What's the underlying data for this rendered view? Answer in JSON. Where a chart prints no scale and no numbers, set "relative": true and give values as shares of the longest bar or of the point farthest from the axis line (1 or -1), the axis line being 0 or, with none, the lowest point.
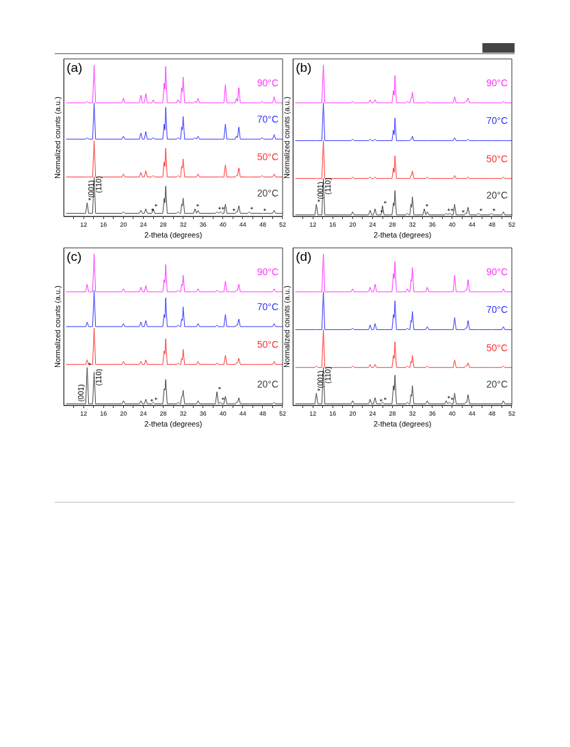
{
  "chart_data": [
    {
      "type": "line",
      "title": "(a)",
      "xlabel": "2-theta (degrees)",
      "ylabel": "Normalized counts (a.u.)",
      "relative": true,
      "grid": false,
      "legend": false,
      "marker": "none",
      "line_style": "solid",
      "xlim": [
        8,
        52
      ],
      "xticks": [
        {
          "value": 10,
          "label": null
        },
        12,
        {
          "value": 14,
          "label": null
        },
        16,
        {
          "value": 18,
          "label": null
        },
        20,
        {
          "value": 22,
          "label": null
        },
        24,
        {
          "value": 26,
          "label": null
        },
        28,
        {
          "value": 30,
          "label": null
        },
        32,
        {
          "value": 34,
          "label": null
        },
        36,
        {
          "value": 38,
          "label": null
        },
        40,
        {
          "value": 42,
          "label": null
        },
        44,
        {
          "value": 46,
          "label": null
        },
        48,
        {
          "value": 50,
          "label": null
        },
        52
      ],
      "x": [
        8.5,
        12.4,
        12.7,
        13.0,
        13.8,
        14.1,
        14.4,
        19.7,
        20.0,
        20.3,
        23.2,
        23.5,
        23.8,
        24.2,
        24.5,
        24.8,
        25.7,
        26.0,
        26.3,
        27.9,
        28.2,
        28.35,
        28.5,
        28.8,
        30.7,
        31.0,
        31.3,
        31.5,
        31.7,
        31.85,
        32.0,
        32.3,
        34.1,
        34.4,
        34.7,
        35.0,
        35.3,
        38.5,
        38.8,
        39.1,
        39.5,
        39.8,
        40.2,
        40.5,
        40.8,
        41.5,
        41.8,
        42.1,
        42.5,
        42.7,
        42.95,
        43.2,
        43.5,
        45.0,
        45.3,
        45.6,
        47.6,
        47.9,
        48.2,
        50.0,
        50.3,
        50.6,
        52
      ],
      "series": [
        {
          "name": "90°C",
          "color": "#ff33ff",
          "values": [
            0.75,
            0.75,
            0.76,
            0.75,
            0.75,
            1,
            0.75,
            0.75,
            0.78,
            0.75,
            0.75,
            0.8,
            0.75,
            0.75,
            0.81,
            0.75,
            0.75,
            0.77,
            0.75,
            0.75,
            0.88,
            0.84,
            0.99,
            0.75,
            0.75,
            0.77,
            0.75,
            0.75,
            0.85,
            0.82,
            0.92,
            0.75,
            0.75,
            0.76,
            0.75,
            0.78,
            0.75,
            0.75,
            0.75,
            0.75,
            0.75,
            0.75,
            0.75,
            0.87,
            0.75,
            0.75,
            0.75,
            0.75,
            0.75,
            0.78,
            0.76,
            0.85,
            0.75,
            0.75,
            0.75,
            0.75,
            0.75,
            0.76,
            0.75,
            0.75,
            0.79,
            0.75,
            0.75
          ]
        },
        {
          "name": "70°C",
          "color": "#3333ff",
          "values": [
            0.51,
            0.51,
            0.52,
            0.51,
            0.51,
            0.75,
            0.51,
            0.51,
            0.53,
            0.51,
            0.51,
            0.55,
            0.51,
            0.51,
            0.56,
            0.51,
            0.51,
            0.52,
            0.51,
            0.51,
            0.61,
            0.57,
            0.72,
            0.51,
            0.51,
            0.52,
            0.51,
            0.51,
            0.59,
            0.57,
            0.66,
            0.51,
            0.51,
            0.52,
            0.51,
            0.53,
            0.51,
            0.51,
            0.51,
            0.51,
            0.51,
            0.51,
            0.51,
            0.61,
            0.51,
            0.51,
            0.51,
            0.51,
            0.51,
            0.53,
            0.52,
            0.59,
            0.51,
            0.51,
            0.51,
            0.51,
            0.51,
            0.52,
            0.51,
            0.51,
            0.54,
            0.51,
            0.51
          ]
        },
        {
          "name": "50°C",
          "color": "#ff3333",
          "values": [
            0.26,
            0.26,
            0.26,
            0.26,
            0.26,
            0.5,
            0.26,
            0.26,
            0.28,
            0.26,
            0.26,
            0.29,
            0.26,
            0.26,
            0.3,
            0.26,
            0.26,
            0.27,
            0.26,
            0.26,
            0.36,
            0.33,
            0.45,
            0.26,
            0.26,
            0.27,
            0.26,
            0.26,
            0.33,
            0.32,
            0.38,
            0.26,
            0.26,
            0.26,
            0.26,
            0.28,
            0.26,
            0.26,
            0.26,
            0.26,
            0.26,
            0.26,
            0.26,
            0.34,
            0.26,
            0.26,
            0.26,
            0.26,
            0.26,
            0.27,
            0.27,
            0.32,
            0.26,
            0.26,
            0.26,
            0.26,
            0.26,
            0.27,
            0.26,
            0.26,
            0.28,
            0.26,
            0.26
          ]
        },
        {
          "name": "20°C",
          "color": "#404040",
          "values": [
            0.02,
            0.02,
            0.09,
            0.02,
            0.02,
            0.26,
            0.02,
            0.02,
            0.03,
            0.02,
            0.02,
            0.04,
            0.02,
            0.02,
            0.05,
            0.02,
            0.02,
            0.05,
            0.02,
            0.02,
            0.12,
            0.09,
            0.2,
            0.02,
            0.02,
            0.03,
            0.02,
            0.02,
            0.08,
            0.07,
            0.12,
            0.02,
            0.02,
            0.05,
            0.02,
            0.04,
            0.02,
            0.02,
            0.03,
            0.02,
            0.03,
            0.02,
            0.02,
            0.08,
            0.02,
            0.02,
            0.02,
            0.02,
            0.02,
            0.03,
            0.03,
            0.07,
            0.02,
            0.02,
            0.03,
            0.02,
            0.02,
            0.02,
            0.02,
            0.02,
            0.04,
            0.02,
            0.02
          ]
        }
      ],
      "annotations": [
        {
          "text": "*(001)",
          "x": 12.7,
          "y": 0.09
        },
        {
          "text": "(110)",
          "x": 14.25,
          "y": 0.14
        },
        {
          "text": "*",
          "x": 25.4,
          "y": 0.02
        },
        {
          "text": "*",
          "x": 26.0,
          "y": 0.05
        },
        {
          "text": "*",
          "x": 34.4,
          "y": 0.05
        },
        {
          "text": "*",
          "x": 38.8,
          "y": 0.03
        },
        {
          "text": "*",
          "x": 39.5,
          "y": 0.03
        },
        {
          "text": "*",
          "x": 41.8,
          "y": 0.02
        },
        {
          "text": "*",
          "x": 45.3,
          "y": 0.03
        },
        {
          "text": "*",
          "x": 47.9,
          "y": 0.02
        }
      ]
    },
    {
      "type": "line",
      "title": "(b)",
      "xlabel": "2-theta (degrees)",
      "ylabel": "Normalized counts (a.u.)",
      "relative": true,
      "grid": false,
      "legend": false,
      "marker": "none",
      "line_style": "solid",
      "xlim": [
        8,
        52
      ],
      "xticks": [
        {
          "value": 10,
          "label": null
        },
        12,
        {
          "value": 14,
          "label": null
        },
        16,
        {
          "value": 18,
          "label": null
        },
        20,
        {
          "value": 22,
          "label": null
        },
        24,
        {
          "value": 26,
          "label": null
        },
        28,
        {
          "value": 30,
          "label": null
        },
        32,
        {
          "value": 34,
          "label": null
        },
        36,
        {
          "value": 38,
          "label": null
        },
        40,
        {
          "value": 42,
          "label": null
        },
        44,
        {
          "value": 46,
          "label": null
        },
        48,
        {
          "value": 50,
          "label": null
        },
        52
      ],
      "x": [
        8.5,
        12.4,
        12.7,
        13.0,
        13.8,
        14.1,
        14.4,
        19.7,
        20.0,
        20.3,
        23.2,
        23.5,
        23.8,
        24.2,
        24.5,
        24.8,
        25.7,
        26.0,
        26.3,
        27.9,
        28.2,
        28.35,
        28.5,
        28.8,
        30.7,
        31.0,
        31.3,
        31.5,
        31.7,
        31.85,
        32.0,
        32.3,
        34.1,
        34.4,
        34.7,
        35.0,
        35.3,
        38.5,
        38.8,
        39.1,
        39.5,
        39.8,
        40.2,
        40.5,
        40.8,
        41.5,
        41.8,
        42.1,
        42.5,
        42.7,
        42.95,
        43.2,
        43.5,
        45.0,
        45.3,
        45.6,
        47.6,
        47.9,
        48.2,
        50.0,
        50.3,
        50.6,
        52
      ],
      "series": [
        {
          "name": "90°C",
          "color": "#ff33ff",
          "values": [
            0.75,
            0.75,
            0.75,
            0.75,
            0.75,
            1,
            0.75,
            0.75,
            0.76,
            0.75,
            0.75,
            0.77,
            0.75,
            0.75,
            0.77,
            0.75,
            0.75,
            0.75,
            0.75,
            0.75,
            0.83,
            0.8,
            0.93,
            0.75,
            0.75,
            0.76,
            0.75,
            0.75,
            0.78,
            0.78,
            0.82,
            0.75,
            0.75,
            0.75,
            0.75,
            0.76,
            0.75,
            0.75,
            0.75,
            0.75,
            0.75,
            0.75,
            0.75,
            0.79,
            0.75,
            0.75,
            0.75,
            0.75,
            0.75,
            0.76,
            0.76,
            0.78,
            0.75,
            0.75,
            0.75,
            0.75,
            0.75,
            0.75,
            0.75,
            0.75,
            0.76,
            0.75,
            0.75
          ]
        },
        {
          "name": "70°C",
          "color": "#3333ff",
          "values": [
            0.5,
            0.5,
            0.5,
            0.5,
            0.5,
            0.75,
            0.5,
            0.5,
            0.51,
            0.5,
            0.5,
            0.51,
            0.5,
            0.5,
            0.51,
            0.5,
            0.5,
            0.5,
            0.5,
            0.5,
            0.57,
            0.54,
            0.65,
            0.5,
            0.5,
            0.5,
            0.5,
            0.5,
            0.51,
            0.51,
            0.53,
            0.5,
            0.5,
            0.5,
            0.5,
            0.5,
            0.5,
            0.5,
            0.5,
            0.5,
            0.5,
            0.5,
            0.5,
            0.52,
            0.5,
            0.5,
            0.5,
            0.5,
            0.5,
            0.5,
            0.5,
            0.51,
            0.5,
            0.5,
            0.5,
            0.5,
            0.5,
            0.5,
            0.5,
            0.5,
            0.5,
            0.5,
            0.5
          ]
        },
        {
          "name": "50°C",
          "color": "#ff3333",
          "values": [
            0.25,
            0.25,
            0.25,
            0.25,
            0.25,
            0.5,
            0.25,
            0.25,
            0.26,
            0.25,
            0.25,
            0.26,
            0.25,
            0.25,
            0.26,
            0.25,
            0.25,
            0.25,
            0.25,
            0.25,
            0.32,
            0.29,
            0.4,
            0.25,
            0.25,
            0.25,
            0.25,
            0.25,
            0.27,
            0.27,
            0.3,
            0.25,
            0.25,
            0.25,
            0.25,
            0.26,
            0.25,
            0.25,
            0.25,
            0.25,
            0.25,
            0.25,
            0.25,
            0.27,
            0.25,
            0.25,
            0.25,
            0.25,
            0.25,
            0.25,
            0.25,
            0.26,
            0.25,
            0.25,
            0.25,
            0.25,
            0.25,
            0.25,
            0.25,
            0.25,
            0.26,
            0.25,
            0.25
          ]
        },
        {
          "name": "20°C",
          "color": "#404040",
          "values": [
            0.01,
            0.01,
            0.08,
            0.01,
            0.01,
            0.25,
            0.01,
            0.01,
            0.03,
            0.01,
            0.01,
            0.04,
            0.01,
            0.01,
            0.05,
            0.01,
            0.01,
            0.07,
            0.01,
            0.01,
            0.09,
            0.07,
            0.17,
            0.01,
            0.01,
            0.02,
            0.01,
            0.01,
            0.08,
            0.06,
            0.13,
            0.01,
            0.01,
            0.05,
            0.01,
            0.03,
            0.01,
            0.01,
            0.02,
            0.01,
            0.02,
            0.01,
            0.01,
            0.08,
            0.01,
            0.01,
            0.01,
            0.01,
            0.01,
            0.02,
            0.02,
            0.06,
            0.01,
            0.01,
            0.02,
            0.01,
            0.01,
            0.02,
            0.01,
            0.01,
            0.03,
            0.01,
            0.01
          ]
        }
      ],
      "annotations": [
        {
          "text": "*(001)",
          "x": 12.7,
          "y": 0.08
        },
        {
          "text": "(110)",
          "x": 14.25,
          "y": 0.13
        },
        {
          "text": "*",
          "x": 25.4,
          "y": 0.01
        },
        {
          "text": "*",
          "x": 26.0,
          "y": 0.07
        },
        {
          "text": "*",
          "x": 34.4,
          "y": 0.05
        },
        {
          "text": "*",
          "x": 38.8,
          "y": 0.02
        },
        {
          "text": "*",
          "x": 39.5,
          "y": 0.02
        },
        {
          "text": "*",
          "x": 41.8,
          "y": 0.01
        },
        {
          "text": "*",
          "x": 45.3,
          "y": 0.02
        },
        {
          "text": "*",
          "x": 47.9,
          "y": 0.02
        }
      ]
    },
    {
      "type": "line",
      "title": "(c)",
      "xlabel": "2-theta (degrees)",
      "ylabel": "Normalized counts (a.u.)",
      "relative": true,
      "grid": false,
      "legend": false,
      "marker": "none",
      "line_style": "solid",
      "xlim": [
        8,
        52
      ],
      "xticks": [
        {
          "value": 10,
          "label": null
        },
        12,
        {
          "value": 14,
          "label": null
        },
        16,
        {
          "value": 18,
          "label": null
        },
        20,
        {
          "value": 22,
          "label": null
        },
        24,
        {
          "value": 26,
          "label": null
        },
        28,
        {
          "value": 30,
          "label": null
        },
        32,
        {
          "value": 34,
          "label": null
        },
        36,
        {
          "value": 38,
          "label": null
        },
        40,
        {
          "value": 42,
          "label": null
        },
        44,
        {
          "value": 46,
          "label": null
        },
        48,
        {
          "value": 50,
          "label": null
        },
        52
      ],
      "x": [
        8.5,
        12.4,
        12.7,
        13.0,
        13.8,
        14.1,
        14.4,
        19.7,
        20.0,
        20.3,
        23.2,
        23.5,
        23.8,
        24.2,
        24.5,
        24.8,
        25.7,
        26.0,
        26.3,
        27.9,
        28.2,
        28.35,
        28.5,
        28.8,
        30.7,
        31.0,
        31.3,
        31.5,
        31.7,
        31.85,
        32.0,
        32.3,
        34.1,
        34.4,
        34.7,
        35.0,
        35.3,
        38.5,
        38.8,
        39.1,
        39.5,
        39.8,
        40.2,
        40.5,
        40.8,
        41.5,
        41.8,
        42.1,
        42.5,
        42.7,
        42.95,
        43.2,
        43.5,
        45.0,
        45.3,
        45.6,
        47.6,
        47.9,
        48.2,
        50.0,
        50.3,
        50.6,
        52
      ],
      "series": [
        {
          "name": "90°C",
          "color": "#ff33ff",
          "values": [
            0.75,
            0.75,
            0.8,
            0.75,
            0.75,
            1,
            0.75,
            0.75,
            0.77,
            0.75,
            0.75,
            0.78,
            0.75,
            0.75,
            0.79,
            0.75,
            0.75,
            0.75,
            0.75,
            0.75,
            0.83,
            0.81,
            0.93,
            0.75,
            0.75,
            0.76,
            0.75,
            0.75,
            0.8,
            0.79,
            0.86,
            0.75,
            0.75,
            0.75,
            0.75,
            0.77,
            0.75,
            0.75,
            0.76,
            0.75,
            0.75,
            0.75,
            0.75,
            0.82,
            0.75,
            0.75,
            0.75,
            0.75,
            0.75,
            0.76,
            0.76,
            0.8,
            0.75,
            0.75,
            0.75,
            0.75,
            0.75,
            0.75,
            0.75,
            0.75,
            0.77,
            0.75,
            0.75
          ]
        },
        {
          "name": "70°C",
          "color": "#3333ff",
          "values": [
            0.52,
            0.52,
            0.55,
            0.52,
            0.52,
            0.76,
            0.52,
            0.52,
            0.54,
            0.52,
            0.52,
            0.55,
            0.52,
            0.52,
            0.56,
            0.52,
            0.52,
            0.52,
            0.52,
            0.52,
            0.6,
            0.58,
            0.71,
            0.52,
            0.52,
            0.53,
            0.52,
            0.52,
            0.57,
            0.56,
            0.65,
            0.52,
            0.52,
            0.52,
            0.52,
            0.54,
            0.52,
            0.52,
            0.53,
            0.52,
            0.52,
            0.52,
            0.52,
            0.6,
            0.52,
            0.52,
            0.52,
            0.52,
            0.52,
            0.53,
            0.53,
            0.57,
            0.52,
            0.52,
            0.52,
            0.52,
            0.52,
            0.52,
            0.52,
            0.52,
            0.54,
            0.52,
            0.52
          ]
        },
        {
          "name": "50°C",
          "color": "#ff3333",
          "values": [
            0.27,
            0.27,
            0.3,
            0.27,
            0.27,
            0.51,
            0.27,
            0.27,
            0.29,
            0.27,
            0.27,
            0.29,
            0.27,
            0.27,
            0.3,
            0.27,
            0.27,
            0.27,
            0.27,
            0.27,
            0.36,
            0.34,
            0.44,
            0.27,
            0.27,
            0.28,
            0.27,
            0.27,
            0.31,
            0.3,
            0.37,
            0.27,
            0.27,
            0.27,
            0.27,
            0.29,
            0.27,
            0.27,
            0.28,
            0.27,
            0.27,
            0.27,
            0.27,
            0.33,
            0.27,
            0.27,
            0.27,
            0.27,
            0.27,
            0.28,
            0.28,
            0.31,
            0.27,
            0.27,
            0.27,
            0.27,
            0.27,
            0.27,
            0.27,
            0.27,
            0.29,
            0.27,
            0.27
          ]
        },
        {
          "name": "20°C",
          "color": "#404040",
          "values": [
            0.01,
            0.01,
            0.25,
            0.01,
            0.01,
            0.22,
            0.01,
            0.01,
            0.03,
            0.01,
            0.01,
            0.03,
            0.01,
            0.01,
            0.04,
            0.01,
            0.01,
            0.02,
            0.01,
            0.01,
            0.11,
            0.1,
            0.17,
            0.01,
            0.01,
            0.02,
            0.01,
            0.01,
            0.06,
            0.06,
            0.1,
            0.01,
            0.01,
            0.01,
            0.01,
            0.03,
            0.01,
            0.01,
            0.09,
            0.01,
            0.02,
            0.01,
            0.01,
            0.06,
            0.01,
            0.01,
            0.01,
            0.01,
            0.01,
            0.02,
            0.02,
            0.05,
            0.01,
            0.01,
            0.01,
            0.01,
            0.01,
            0.01,
            0.01,
            0.01,
            0.02,
            0.01,
            0.01
          ]
        }
      ],
      "annotations": [
        {
          "text": "(001)",
          "x": 10.6,
          "y": 0.01
        },
        {
          "text": "(110)",
          "x": 14.25,
          "y": 0.115
        },
        {
          "text": "*",
          "x": 12.7,
          "y": 0.25
        },
        {
          "text": "*",
          "x": 25.2,
          "y": 0.01
        },
        {
          "text": "*",
          "x": 26.0,
          "y": 0.02
        },
        {
          "text": "*",
          "x": 38.8,
          "y": 0.09
        },
        {
          "text": "*",
          "x": 39.5,
          "y": 0.02
        }
      ]
    },
    {
      "type": "line",
      "title": "(d)",
      "xlabel": "2-theta (degrees)",
      "ylabel": "Normalized counts (a.u.)",
      "relative": true,
      "grid": false,
      "legend": false,
      "marker": "none",
      "line_style": "solid",
      "xlim": [
        8,
        52
      ],
      "xticks": [
        {
          "value": 10,
          "label": null
        },
        12,
        {
          "value": 14,
          "label": null
        },
        16,
        {
          "value": 18,
          "label": null
        },
        20,
        {
          "value": 22,
          "label": null
        },
        24,
        {
          "value": 26,
          "label": null
        },
        28,
        {
          "value": 30,
          "label": null
        },
        32,
        {
          "value": 34,
          "label": null
        },
        36,
        {
          "value": 38,
          "label": null
        },
        40,
        {
          "value": 42,
          "label": null
        },
        44,
        {
          "value": 46,
          "label": null
        },
        48,
        {
          "value": 50,
          "label": null
        },
        52
      ],
      "x": [
        8.5,
        12.4,
        12.7,
        13.0,
        13.8,
        14.1,
        14.4,
        19.7,
        20.0,
        20.3,
        23.2,
        23.5,
        23.8,
        24.2,
        24.5,
        24.8,
        25.7,
        26.0,
        26.3,
        27.9,
        28.2,
        28.35,
        28.5,
        28.8,
        30.7,
        31.0,
        31.3,
        31.5,
        31.7,
        31.85,
        32.0,
        32.3,
        34.1,
        34.4,
        34.7,
        35.0,
        35.3,
        38.5,
        38.8,
        39.1,
        39.5,
        39.8,
        40.2,
        40.5,
        40.8,
        41.5,
        41.8,
        42.1,
        42.5,
        42.7,
        42.95,
        43.2,
        43.5,
        45.0,
        45.3,
        45.6,
        47.6,
        47.9,
        48.2,
        50.0,
        50.3,
        50.6,
        52
      ],
      "series": [
        {
          "name": "90°C",
          "color": "#ff33ff",
          "values": [
            0.75,
            0.75,
            0.75,
            0.75,
            0.75,
            1,
            0.75,
            0.75,
            0.77,
            0.75,
            0.75,
            0.78,
            0.75,
            0.75,
            0.8,
            0.75,
            0.75,
            0.75,
            0.75,
            0.75,
            0.87,
            0.84,
            0.95,
            0.75,
            0.75,
            0.77,
            0.75,
            0.75,
            0.83,
            0.82,
            0.91,
            0.75,
            0.75,
            0.75,
            0.75,
            0.78,
            0.75,
            0.75,
            0.75,
            0.75,
            0.75,
            0.75,
            0.75,
            0.86,
            0.75,
            0.75,
            0.75,
            0.75,
            0.75,
            0.76,
            0.76,
            0.83,
            0.75,
            0.75,
            0.75,
            0.75,
            0.75,
            0.75,
            0.75,
            0.75,
            0.77,
            0.75,
            0.75
          ]
        },
        {
          "name": "70°C",
          "color": "#3333ff",
          "values": [
            0.5,
            0.5,
            0.5,
            0.5,
            0.5,
            0.75,
            0.5,
            0.5,
            0.51,
            0.5,
            0.5,
            0.53,
            0.5,
            0.5,
            0.54,
            0.5,
            0.5,
            0.5,
            0.5,
            0.5,
            0.6,
            0.58,
            0.69,
            0.5,
            0.5,
            0.51,
            0.5,
            0.5,
            0.56,
            0.55,
            0.62,
            0.5,
            0.5,
            0.5,
            0.5,
            0.52,
            0.5,
            0.5,
            0.5,
            0.5,
            0.5,
            0.5,
            0.5,
            0.58,
            0.5,
            0.5,
            0.5,
            0.5,
            0.5,
            0.51,
            0.51,
            0.56,
            0.5,
            0.5,
            0.5,
            0.5,
            0.5,
            0.5,
            0.5,
            0.5,
            0.52,
            0.5,
            0.5
          ]
        },
        {
          "name": "50°C",
          "color": "#ff3333",
          "values": [
            0.25,
            0.25,
            0.26,
            0.25,
            0.25,
            0.5,
            0.25,
            0.25,
            0.26,
            0.25,
            0.25,
            0.27,
            0.25,
            0.25,
            0.27,
            0.25,
            0.25,
            0.25,
            0.25,
            0.25,
            0.33,
            0.31,
            0.42,
            0.25,
            0.25,
            0.26,
            0.25,
            0.25,
            0.29,
            0.28,
            0.33,
            0.25,
            0.25,
            0.25,
            0.25,
            0.26,
            0.25,
            0.25,
            0.25,
            0.25,
            0.25,
            0.25,
            0.25,
            0.3,
            0.25,
            0.25,
            0.25,
            0.25,
            0.25,
            0.26,
            0.26,
            0.28,
            0.25,
            0.25,
            0.25,
            0.25,
            0.25,
            0.25,
            0.25,
            0.25,
            0.26,
            0.25,
            0.25
          ]
        },
        {
          "name": "20°C",
          "color": "#404040",
          "values": [
            0.01,
            0.01,
            0.08,
            0.01,
            0.01,
            0.25,
            0.01,
            0.01,
            0.03,
            0.01,
            0.01,
            0.04,
            0.01,
            0.01,
            0.05,
            0.01,
            0.01,
            0.02,
            0.01,
            0.01,
            0.13,
            0.1,
            0.2,
            0.01,
            0.01,
            0.02,
            0.01,
            0.01,
            0.07,
            0.06,
            0.13,
            0.01,
            0.01,
            0.01,
            0.01,
            0.03,
            0.01,
            0.01,
            0.03,
            0.01,
            0.02,
            0.01,
            0.01,
            0.08,
            0.01,
            0.01,
            0.01,
            0.01,
            0.01,
            0.02,
            0.02,
            0.07,
            0.01,
            0.01,
            0.01,
            0.01,
            0.01,
            0.01,
            0.01,
            0.01,
            0.03,
            0.01,
            0.01
          ]
        }
      ],
      "annotations": [
        {
          "text": "*(001)",
          "x": 12.7,
          "y": 0.08
        },
        {
          "text": "(110)",
          "x": 14.25,
          "y": 0.13
        },
        {
          "text": "*",
          "x": 25.2,
          "y": 0.01
        },
        {
          "text": "*",
          "x": 26.0,
          "y": 0.02
        },
        {
          "text": "*",
          "x": 38.8,
          "y": 0.03
        },
        {
          "text": "*",
          "x": 39.5,
          "y": 0.02
        }
      ]
    }
  ]
}
